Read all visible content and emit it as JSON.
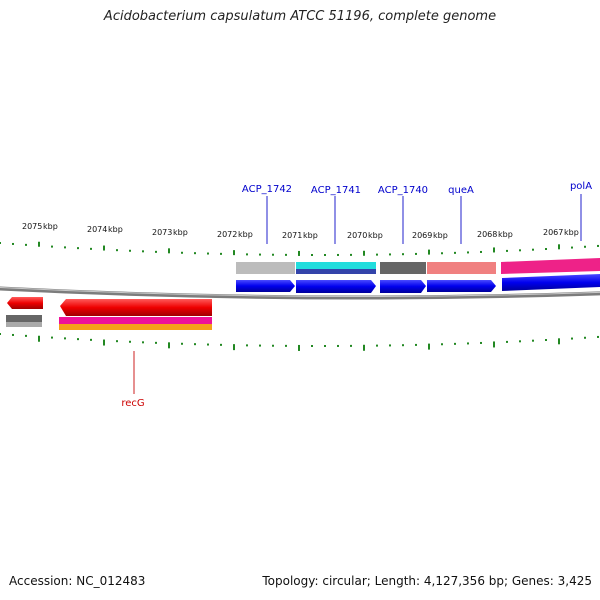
{
  "title": "Acidobacterium capsulatum ATCC 51196, complete genome",
  "footer": {
    "accession": "Accession: NC_012483",
    "summary": "Topology: circular; Length: 4,127,356 bp; Genes: 3,425"
  },
  "ruler": {
    "unit": "kbp",
    "ticks_kbp": [
      2075,
      2074,
      2073,
      2072,
      2071,
      2070,
      2069,
      2068,
      2067
    ]
  },
  "genes": [
    {
      "name": "ACP_1742",
      "color": "#0000cc"
    },
    {
      "name": "ACP_1741",
      "color": "#0000cc"
    },
    {
      "name": "ACP_1740",
      "color": "#0000cc"
    },
    {
      "name": "queA",
      "color": "#0000cc"
    },
    {
      "name": "polA",
      "color": "#0000cc"
    },
    {
      "name": "recG",
      "color": "#cc0000"
    }
  ],
  "colors": {
    "forward_cds": "#0000ee",
    "reverse_cds": "#ee0000",
    "backbone": "#888888",
    "ticks": "#228822"
  }
}
